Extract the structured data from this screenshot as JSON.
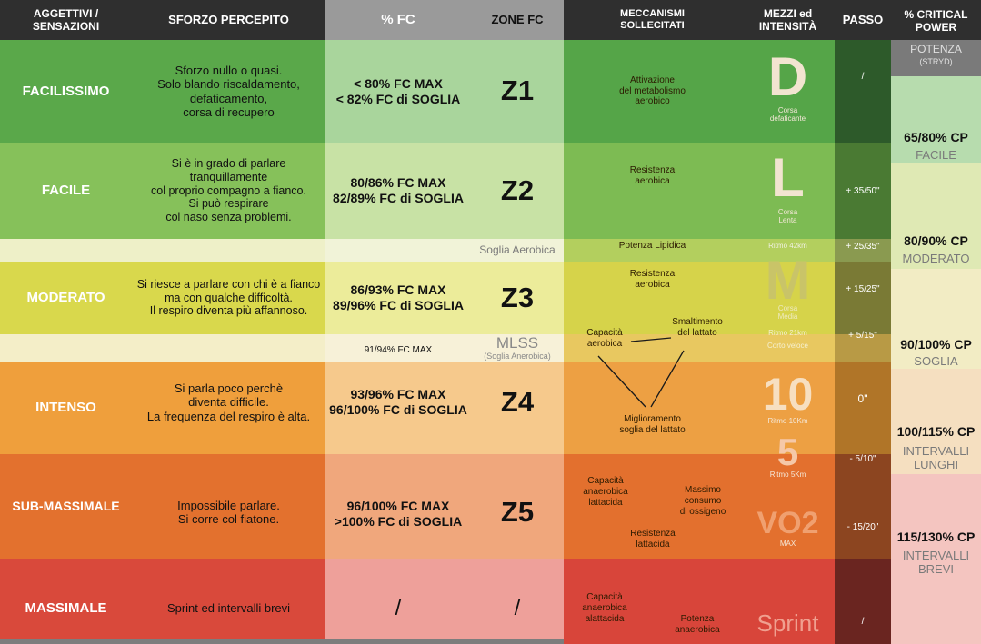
{
  "headers": {
    "feel": "AGGETTIVI /\nSENSAZIONI",
    "effort": "SFORZO PERCEPITO",
    "fc_pct": "% FC",
    "zone_fc": "ZONE FC",
    "mech": "MECCANISMI\nSOLLECITATI",
    "means": "MEZZI ed\nINTENSITÀ",
    "pace": "PASSO",
    "cp": "% CRITICAL\nPOWER"
  },
  "cp_sub": {
    "potenza": "POTENZA",
    "stryd": "(STRYD)"
  },
  "rows": [
    {
      "feel": "FACILISSIMO",
      "effort": "Sforzo nullo o quasi.\nSolo blando riscaldamento,\ndefaticamento,\ncorsa di recupero",
      "fc": "< 80% FC MAX\n< 82% FC di SOGLIA",
      "zone": "Z1",
      "mech": "Attivazione\ndel metabolismo\naerobico",
      "means_big": "D",
      "means_small": "Corsa\ndefaticante",
      "pace": "/"
    },
    {
      "feel": "FACILE",
      "effort": "Si è in grado di parlare\ntranquillamente\ncol proprio compagno a fianco.\nSi può respirare\ncol naso senza problemi.",
      "fc": "80/86% FC MAX\n82/89% FC di SOGLIA",
      "zone": "Z2",
      "mech": "Resistenza\naerobica",
      "means_big": "L",
      "means_small": "Corsa\nLenta",
      "pace": "+ 35/50\""
    },
    {
      "feel": "MODERATO",
      "effort": "Si riesce a parlare con chi è a fianco\nma con qualche difficoltà.\nIl respiro diventa più affannoso.",
      "fc": "86/93% FC MAX\n89/96% FC di SOGLIA",
      "zone": "Z3",
      "mech": "Resistenza\naerobica",
      "means_big": "M",
      "means_small": "Corsa\nMedia",
      "pace": "+ 15/25\""
    },
    {
      "feel": "INTENSO",
      "effort": "Si parla poco perchè\ndiventa difficile.\nLa frequenza del respiro è alta.",
      "fc": "93/96% FC MAX\n96/100% FC di SOGLIA",
      "zone": "Z4",
      "mech": "Miglioramento\nsoglia del lattato",
      "means_big": "10",
      "means_small": "Ritmo 10Km",
      "pace": "0\""
    },
    {
      "feel": "SUB-MASSIMALE",
      "effort": "Impossibile parlare.\nSi corre col fiatone.",
      "fc": "96/100% FC MAX\n>100% FC di SOGLIA",
      "zone": "Z5",
      "means_big": "VO2",
      "means_small": "MAX",
      "pace": "- 15/20\""
    },
    {
      "feel": "MASSIMALE",
      "effort": "Sprint ed intervalli brevi",
      "fc": "/",
      "zone": "/",
      "means_big": "Sprint",
      "pace": "/"
    }
  ],
  "thresholds": {
    "aerobic_label": "Soglia Aerobica",
    "aerobic_mech": "Potenza Lipidica",
    "aerobic_means": "Ritmo 42km",
    "aerobic_pace": "+ 25/35\"",
    "mlss_fc": "91/94% FC MAX",
    "mlss": "MLSS",
    "mlss_sub": "(Soglia Anerobica)",
    "mlss_means1": "Ritmo 21km",
    "mlss_means2": "Corto veloce",
    "mlss_pace": "+ 5/15\"",
    "five_big": "5",
    "five_small": "Ritmo 5Km",
    "five_pace": "- 5/10\""
  },
  "mech_extra": {
    "cap_aerobica": "Capacità\naerobica",
    "smaltimento": "Smaltimento\ndel lattato",
    "cap_lattacida": "Capacità\nanaerobica\nlattacida",
    "massimo": "Massimo\nconsumo\ndi ossigeno",
    "res_lattacida": "Resistenza\nlattacida",
    "cap_alattacida": "Capacità\nanaerobica\nalattacida",
    "potenza_anaerobica": "Potenza\nanaerobica"
  },
  "cp_values": [
    {
      "value": "65/80% CP",
      "label": "FACILE"
    },
    {
      "value": "80/90% CP",
      "label": "MODERATO"
    },
    {
      "value": "90/100% CP",
      "label": "SOGLIA"
    },
    {
      "value": "100/115% CP",
      "label": "INTERVALLI\nLUNGHI"
    },
    {
      "value": "115/130% CP",
      "label": "INTERVALLI\nBREVI"
    }
  ],
  "colors": {
    "header": "#2f2f2f",
    "z1": "#5aa84a",
    "z2": "#86c15a",
    "z3": "#d9d84c",
    "z4": "#ef9f3c",
    "z5": "#e3712e",
    "z6": "#d9493b"
  }
}
